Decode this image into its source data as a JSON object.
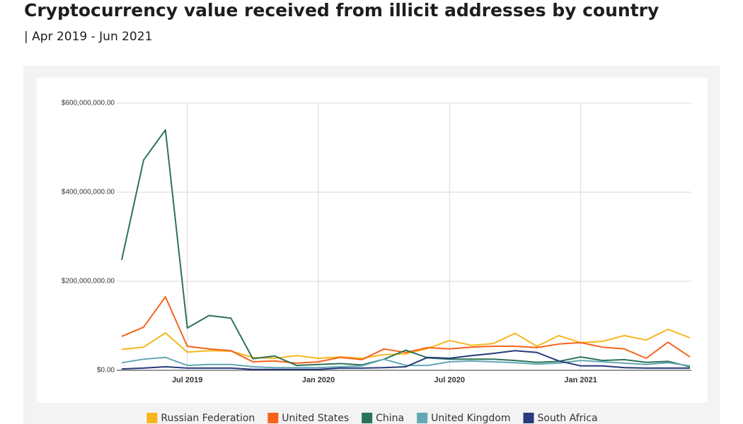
{
  "chart_data": {
    "type": "line",
    "title": "Cryptocurrency value received from illicit addresses by country",
    "subtitle": "| Apr 2019 - Jun 2021",
    "x": [
      "2019-04",
      "2019-05",
      "2019-06",
      "2019-07",
      "2019-08",
      "2019-09",
      "2019-10",
      "2019-11",
      "2019-12",
      "2020-01",
      "2020-02",
      "2020-03",
      "2020-04",
      "2020-05",
      "2020-06",
      "2020-07",
      "2020-08",
      "2020-09",
      "2020-10",
      "2020-11",
      "2020-12",
      "2021-01",
      "2021-02",
      "2021-03",
      "2021-04",
      "2021-05",
      "2021-06"
    ],
    "series": [
      {
        "name": "Russian Federation",
        "color": "#f6b71e",
        "values": [
          47000000,
          52000000,
          84000000,
          41000000,
          44000000,
          43000000,
          29000000,
          27000000,
          33000000,
          27000000,
          30000000,
          27000000,
          35000000,
          37000000,
          49000000,
          67000000,
          56000000,
          60000000,
          83000000,
          54000000,
          78000000,
          62000000,
          65000000,
          78000000,
          68000000,
          92000000,
          73000000
        ]
      },
      {
        "name": "United States",
        "color": "#f7631b",
        "values": [
          76000000,
          97000000,
          165000000,
          54000000,
          48000000,
          44000000,
          19000000,
          21000000,
          16000000,
          19000000,
          29000000,
          24000000,
          48000000,
          40000000,
          51000000,
          48000000,
          52000000,
          54000000,
          54000000,
          51000000,
          59000000,
          62000000,
          52000000,
          48000000,
          27000000,
          63000000,
          30000000
        ]
      },
      {
        "name": "China",
        "color": "#2d7358",
        "values": [
          248000000,
          472000000,
          540000000,
          95000000,
          123000000,
          117000000,
          26000000,
          32000000,
          11000000,
          13000000,
          15000000,
          12000000,
          25000000,
          45000000,
          28000000,
          25000000,
          25000000,
          25000000,
          22000000,
          18000000,
          20000000,
          30000000,
          22000000,
          24000000,
          18000000,
          20000000,
          8000000
        ]
      },
      {
        "name": "United Kingdom",
        "color": "#63a7b5",
        "values": [
          17000000,
          25000000,
          29000000,
          11000000,
          13000000,
          13000000,
          8000000,
          6000000,
          6000000,
          6000000,
          8000000,
          10000000,
          25000000,
          11000000,
          11000000,
          19000000,
          21000000,
          19000000,
          17000000,
          14000000,
          16000000,
          22000000,
          19000000,
          16000000,
          13000000,
          17000000,
          10000000
        ]
      },
      {
        "name": "South Africa",
        "color": "#273a7c",
        "values": [
          3000000,
          5000000,
          8000000,
          5000000,
          5000000,
          5000000,
          2000000,
          2000000,
          2000000,
          2000000,
          5000000,
          5000000,
          6000000,
          8000000,
          29000000,
          27000000,
          33000000,
          38000000,
          44000000,
          40000000,
          21000000,
          10000000,
          10000000,
          6000000,
          5000000,
          5000000,
          5000000
        ]
      }
    ],
    "xlim": [
      "2019-04",
      "2021-06"
    ],
    "xticks": [
      {
        "value": "2019-07",
        "label": "Jul 2019"
      },
      {
        "value": "2020-01",
        "label": "Jan 2020"
      },
      {
        "value": "2020-07",
        "label": "Jul 2020"
      },
      {
        "value": "2021-01",
        "label": "Jan 2021"
      }
    ],
    "ylim": [
      0,
      600000000
    ],
    "yticks": [
      {
        "value": 0,
        "label": "$0.00"
      },
      {
        "value": 200000000,
        "label": "$200,000,000.00"
      },
      {
        "value": 400000000,
        "label": "$400,000,000.00"
      },
      {
        "value": 600000000,
        "label": "$600,000,000.00"
      }
    ],
    "grid": true,
    "legend": "bottom"
  }
}
